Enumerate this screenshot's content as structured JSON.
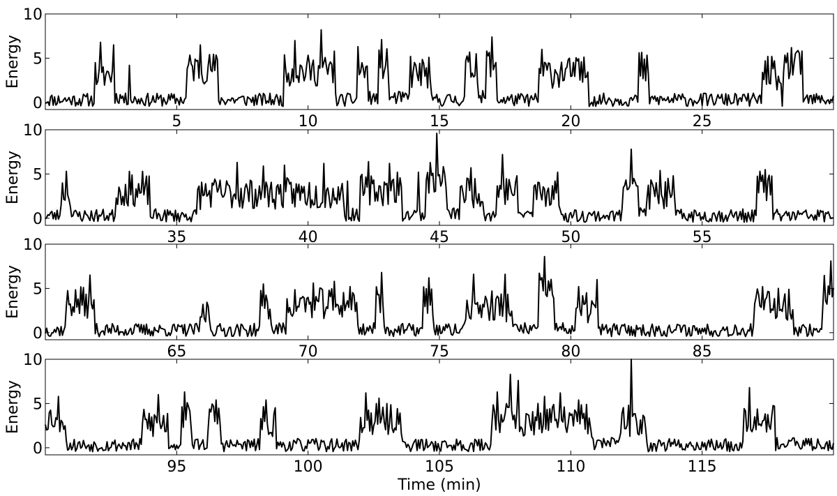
{
  "chart_data": [
    {
      "type": "line",
      "ylabel": "Energy",
      "xlim": [
        0,
        30
      ],
      "ylim": [
        -0.8,
        10
      ],
      "xticks": [
        5,
        10,
        15,
        20,
        25
      ],
      "yticks": [
        0,
        5,
        10
      ],
      "segments": [
        [
          0,
          1.9,
          0.3
        ],
        [
          1.9,
          2.6,
          3.2
        ],
        [
          2.6,
          3.0,
          0.6
        ],
        [
          3.0,
          5.4,
          0.3
        ],
        [
          5.4,
          6.6,
          3.9
        ],
        [
          6.6,
          9.1,
          0.3
        ],
        [
          9.1,
          11.0,
          3.6
        ],
        [
          11.0,
          11.9,
          0.3
        ],
        [
          11.9,
          12.3,
          3.6
        ],
        [
          12.3,
          12.7,
          0.5
        ],
        [
          12.7,
          13.1,
          4.3
        ],
        [
          13.1,
          13.9,
          0.5
        ],
        [
          13.9,
          14.7,
          3.3
        ],
        [
          14.7,
          16.0,
          0.3
        ],
        [
          16.0,
          16.5,
          4.0
        ],
        [
          16.5,
          16.8,
          0.6
        ],
        [
          16.8,
          17.2,
          4.6
        ],
        [
          17.2,
          18.8,
          0.3
        ],
        [
          18.8,
          20.7,
          3.4
        ],
        [
          20.7,
          22.6,
          0.3
        ],
        [
          22.6,
          23.0,
          4.0
        ],
        [
          23.0,
          27.3,
          0.3
        ],
        [
          27.3,
          27.8,
          3.6
        ],
        [
          27.8,
          28.1,
          1.2
        ],
        [
          28.1,
          28.8,
          4.1
        ],
        [
          28.8,
          30,
          0.3
        ]
      ],
      "peaks": [
        [
          2.1,
          6.8
        ],
        [
          2.6,
          6.5
        ],
        [
          3.2,
          4.2
        ],
        [
          5.9,
          6.5
        ],
        [
          9.5,
          7.0
        ],
        [
          10.5,
          8.2
        ],
        [
          11.0,
          5.8
        ],
        [
          11.9,
          6.3
        ],
        [
          12.8,
          7.1
        ],
        [
          13.9,
          5.2
        ],
        [
          14.6,
          5.1
        ],
        [
          16.4,
          5.5
        ],
        [
          17.0,
          7.4
        ],
        [
          18.9,
          6.0
        ],
        [
          20.4,
          4.6
        ],
        [
          22.8,
          4.9
        ],
        [
          27.4,
          4.7
        ],
        [
          28.4,
          6.2
        ],
        [
          28.8,
          5.8
        ]
      ],
      "seed": 11
    },
    {
      "type": "line",
      "ylabel": "Energy",
      "xlim": [
        30,
        60
      ],
      "ylim": [
        -0.8,
        10
      ],
      "xticks": [
        35,
        40,
        45,
        50,
        55
      ],
      "yticks": [
        0,
        5,
        10
      ],
      "segments": [
        [
          30,
          30.6,
          0.3
        ],
        [
          30.6,
          31.0,
          3.0
        ],
        [
          31.0,
          32.7,
          0.3
        ],
        [
          32.7,
          34.0,
          3.1
        ],
        [
          34.0,
          35.8,
          0.3
        ],
        [
          35.8,
          41.4,
          2.8
        ],
        [
          41.4,
          42.0,
          0.4
        ],
        [
          42.0,
          43.6,
          3.2
        ],
        [
          43.6,
          44.5,
          0.4
        ],
        [
          44.5,
          45.3,
          4.5
        ],
        [
          45.3,
          45.8,
          0.5
        ],
        [
          45.8,
          46.7,
          3.0
        ],
        [
          46.7,
          47.2,
          0.4
        ],
        [
          47.2,
          48.0,
          3.2
        ],
        [
          48.0,
          48.6,
          0.5
        ],
        [
          48.6,
          49.6,
          3.0
        ],
        [
          49.6,
          52.0,
          0.3
        ],
        [
          52.0,
          52.6,
          4.5
        ],
        [
          52.6,
          52.9,
          0.6
        ],
        [
          52.9,
          54.0,
          2.7
        ],
        [
          54.0,
          57.1,
          0.3
        ],
        [
          57.1,
          57.7,
          3.6
        ],
        [
          57.7,
          60,
          0.3
        ]
      ],
      "peaks": [
        [
          30.8,
          5.3
        ],
        [
          33.2,
          5.3
        ],
        [
          33.7,
          5.3
        ],
        [
          37.3,
          6.3
        ],
        [
          38.3,
          5.9
        ],
        [
          39.1,
          6.0
        ],
        [
          40.6,
          6.2
        ],
        [
          41.5,
          4.2
        ],
        [
          42.3,
          6.4
        ],
        [
          43.1,
          6.2
        ],
        [
          43.4,
          5.2
        ],
        [
          44.2,
          5.2
        ],
        [
          44.9,
          9.6
        ],
        [
          46.2,
          5.7
        ],
        [
          47.4,
          7.2
        ],
        [
          49.5,
          5.2
        ],
        [
          52.3,
          7.8
        ],
        [
          53.4,
          5.4
        ],
        [
          53.9,
          4.8
        ],
        [
          57.4,
          5.5
        ]
      ],
      "seed": 23
    },
    {
      "type": "line",
      "ylabel": "Energy",
      "xlim": [
        60,
        90
      ],
      "ylim": [
        -0.8,
        10
      ],
      "xticks": [
        65,
        70,
        75,
        80,
        85
      ],
      "yticks": [
        0,
        5,
        10
      ],
      "segments": [
        [
          60,
          60.8,
          0.3
        ],
        [
          60.8,
          61.9,
          3.4
        ],
        [
          61.9,
          65.9,
          0.3
        ],
        [
          65.9,
          66.3,
          2.4
        ],
        [
          66.3,
          68.2,
          0.3
        ],
        [
          68.2,
          68.6,
          3.3
        ],
        [
          68.6,
          69.2,
          0.4
        ],
        [
          69.2,
          71.9,
          3.3
        ],
        [
          71.9,
          72.6,
          0.4
        ],
        [
          72.6,
          72.9,
          4.0
        ],
        [
          72.9,
          74.4,
          0.3
        ],
        [
          74.4,
          74.8,
          3.6
        ],
        [
          74.8,
          76.0,
          0.3
        ],
        [
          76.0,
          77.8,
          3.0
        ],
        [
          77.8,
          78.8,
          0.4
        ],
        [
          78.8,
          79.4,
          5.0
        ],
        [
          79.4,
          80.2,
          0.4
        ],
        [
          80.2,
          81.0,
          2.8
        ],
        [
          81.0,
          87.0,
          0.3
        ],
        [
          87.0,
          88.5,
          3.2
        ],
        [
          88.5,
          89.6,
          0.3
        ],
        [
          89.6,
          90,
          4.8
        ]
      ],
      "peaks": [
        [
          61.7,
          6.5
        ],
        [
          66.0,
          3.2
        ],
        [
          68.3,
          5.5
        ],
        [
          70.2,
          5.6
        ],
        [
          71.0,
          5.8
        ],
        [
          71.6,
          5.2
        ],
        [
          72.8,
          6.8
        ],
        [
          74.6,
          6.2
        ],
        [
          76.3,
          6.6
        ],
        [
          77.5,
          6.6
        ],
        [
          79.0,
          8.6
        ],
        [
          80.3,
          5.2
        ],
        [
          81.0,
          6.0
        ],
        [
          87.3,
          5.2
        ],
        [
          87.9,
          5.0
        ],
        [
          89.9,
          8.1
        ]
      ],
      "seed": 37
    },
    {
      "type": "line",
      "ylabel": "Energy",
      "xlabel": "Time (min)",
      "xlim": [
        90,
        120
      ],
      "ylim": [
        -0.8,
        10
      ],
      "xticks": [
        95,
        100,
        105,
        110,
        115
      ],
      "yticks": [
        0,
        5,
        10
      ],
      "segments": [
        [
          90,
          90.8,
          3.5
        ],
        [
          90.8,
          93.7,
          0.3
        ],
        [
          93.7,
          94.7,
          2.8
        ],
        [
          94.7,
          95.2,
          0.4
        ],
        [
          95.2,
          95.6,
          3.8
        ],
        [
          95.6,
          96.2,
          0.4
        ],
        [
          96.2,
          96.7,
          3.4
        ],
        [
          96.7,
          98.2,
          0.3
        ],
        [
          98.2,
          98.8,
          3.0
        ],
        [
          98.8,
          102.0,
          0.3
        ],
        [
          102.0,
          103.6,
          3.2
        ],
        [
          103.6,
          107.0,
          0.3
        ],
        [
          107.0,
          108.0,
          3.5
        ],
        [
          108.0,
          108.3,
          1.0
        ],
        [
          108.3,
          110.8,
          3.2
        ],
        [
          110.8,
          111.9,
          0.5
        ],
        [
          111.9,
          112.9,
          3.0
        ],
        [
          112.9,
          116.6,
          0.3
        ],
        [
          116.6,
          117.8,
          3.5
        ],
        [
          117.8,
          120,
          0.4
        ]
      ],
      "peaks": [
        [
          90.5,
          5.8
        ],
        [
          94.3,
          6.0
        ],
        [
          95.3,
          6.3
        ],
        [
          96.5,
          5.4
        ],
        [
          98.4,
          5.4
        ],
        [
          102.2,
          6.2
        ],
        [
          102.7,
          5.6
        ],
        [
          107.2,
          6.3
        ],
        [
          107.7,
          8.3
        ],
        [
          108.0,
          7.6
        ],
        [
          109.0,
          5.8
        ],
        [
          109.6,
          6.2
        ],
        [
          110.3,
          5.4
        ],
        [
          112.3,
          10.0
        ],
        [
          116.8,
          6.8
        ]
      ],
      "seed": 53
    }
  ]
}
